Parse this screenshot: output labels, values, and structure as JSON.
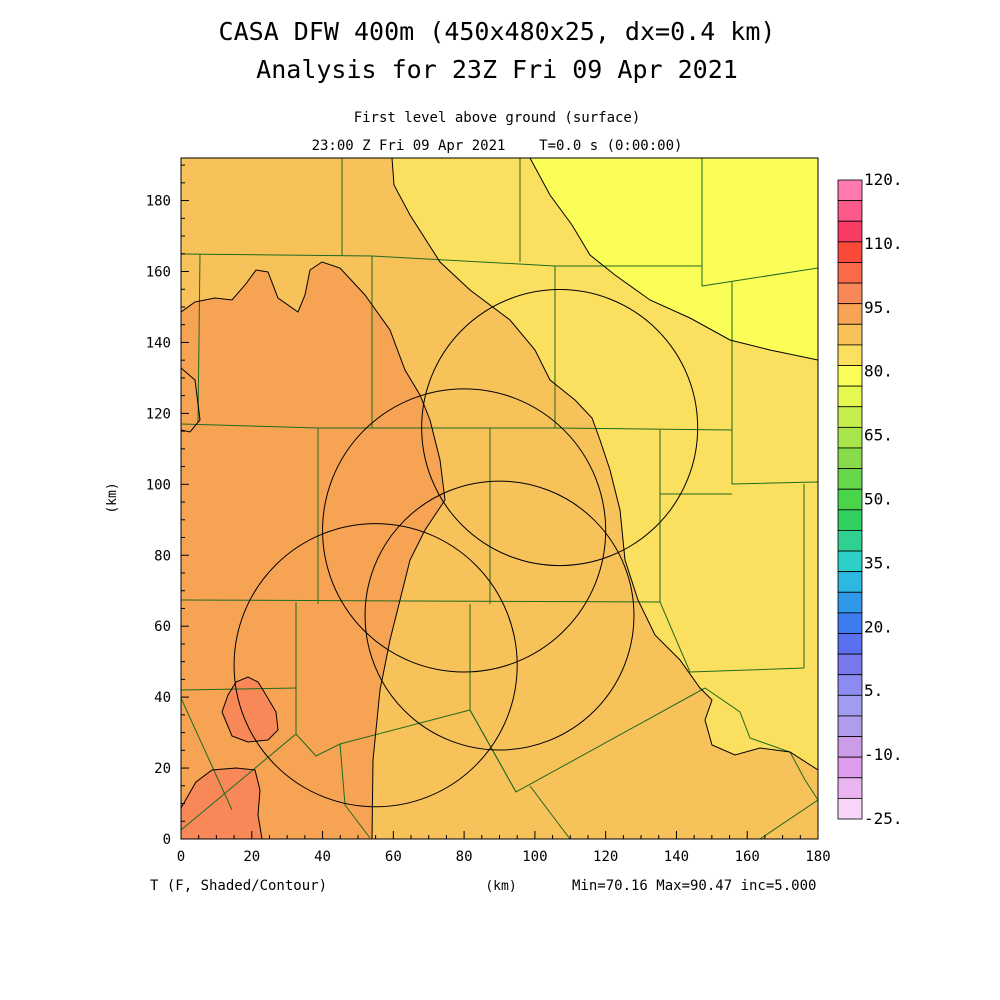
{
  "chart_data": {
    "type": "heatmap",
    "title": "CASA DFW 400m (450x480x25, dx=0.4 km)",
    "subtitle": "Analysis for 23Z Fri 09 Apr 2021",
    "level_label": "First level above ground (surface)",
    "time_label": "23:00 Z Fri 09 Apr 2021    T=0.0 s (0:00:00)",
    "xlabel": "(km)",
    "ylabel": "(km)",
    "field_label": "T (F, Shaded/Contour)",
    "stats_label": "Min=70.16 Max=90.47 inc=5.000",
    "xlim": [
      0,
      180
    ],
    "ylim": [
      0,
      192
    ],
    "x_ticks": [
      0,
      20,
      40,
      60,
      80,
      100,
      120,
      140,
      160,
      180
    ],
    "y_ticks": [
      0,
      20,
      40,
      60,
      80,
      100,
      120,
      140,
      160,
      180
    ],
    "colorbar_labels": [
      "120.",
      "110.",
      "95.",
      "80.",
      "65.",
      "50.",
      "35.",
      "20.",
      "5.",
      "-10.",
      "-25."
    ],
    "colorbar_colors": [
      "#ff7ab0",
      "#fb5a8a",
      "#f83c64",
      "#fa4a3a",
      "#fb6a48",
      "#f98858",
      "#f6a454",
      "#f8c25a",
      "#fbdf5e",
      "#fcfe58",
      "#e4f850",
      "#c6ef4e",
      "#a8e64e",
      "#88dc4c",
      "#66d64a",
      "#4ad44a",
      "#30d060",
      "#30d090",
      "#2cd0c8",
      "#2cb8e0",
      "#3098e8",
      "#3c7cf0",
      "#5a70ee",
      "#7878ec",
      "#8c8cf0",
      "#a09cf0",
      "#b09cec",
      "#cc9ce8",
      "#e09cec",
      "#eab4f0",
      "#f8d6fa"
    ],
    "temperature_colors": {
      "t70": "#fcfe58",
      "t75": "#fbdf5e",
      "t80": "#f8c25a",
      "t85": "#f6a454",
      "t90": "#f98858"
    },
    "radar_rings": [
      {
        "x": 107,
        "y": 116,
        "r": 39
      },
      {
        "x": 80,
        "y": 87,
        "r": 40
      },
      {
        "x": 90,
        "y": 63,
        "r": 38
      },
      {
        "x": 55,
        "y": 49,
        "r": 40
      }
    ]
  }
}
